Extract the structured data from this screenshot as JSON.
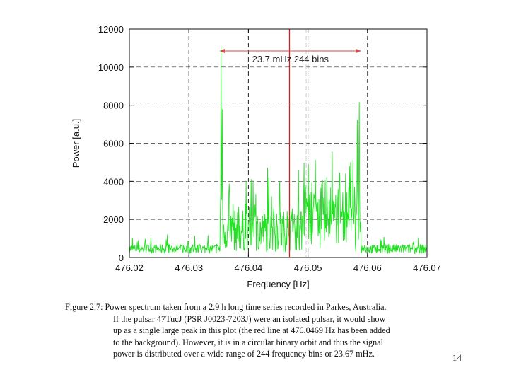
{
  "chart_data": {
    "type": "line",
    "title": "",
    "xlabel": "Frequency [Hz]",
    "ylabel": "Power [a.u.]",
    "xlim": [
      476.02,
      476.07
    ],
    "ylim": [
      0,
      12000
    ],
    "xticks": [
      "476.02",
      "476.03",
      "476.04",
      "476.05",
      "476.06",
      "476.07"
    ],
    "yticks": [
      "0",
      "2000",
      "4000",
      "6000",
      "8000",
      "10000",
      "12000"
    ],
    "grid": true,
    "series_color": "#22e022",
    "marker_line": {
      "x": 476.0469,
      "color": "#cc2222"
    },
    "dashed_lines_x": [
      476.03,
      476.04,
      476.05,
      476.06
    ],
    "annotation": {
      "text": "23.7 mHz   244 bins",
      "from": 476.0352,
      "to": 476.0589,
      "color": "#d94a4a"
    },
    "peaks": [
      {
        "x": 476.0354,
        "y": 11150
      },
      {
        "x": 476.0356,
        "y": 7900
      },
      {
        "x": 476.0586,
        "y": 8800
      },
      {
        "x": 476.0583,
        "y": 7400
      },
      {
        "x": 476.057,
        "y": 5000
      },
      {
        "x": 476.0553,
        "y": 5300
      },
      {
        "x": 476.0524,
        "y": 4600
      },
      {
        "x": 476.0408,
        "y": 4100
      },
      {
        "x": 476.0368,
        "y": 4200
      }
    ]
  },
  "caption": {
    "lines": [
      "Figure 2.7: Power spectrum taken from a 2.9 h long time series recorded in Parkes, Australia.",
      "If the pulsar 47TucJ (PSR J0023-7203J) were an isolated pulsar, it would show",
      "up as a single large peak in this plot (the red line at 476.0469 Hz has been added",
      "to the background). However, it is in a circular binary orbit and thus the signal",
      "power is distributed over a wide range of 244 frequency bins or 23.67 mHz."
    ]
  },
  "page_number": "14"
}
